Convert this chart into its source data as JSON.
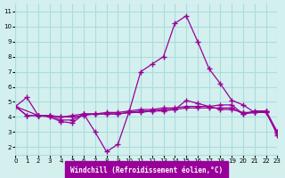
{
  "xlabel": "Windchill (Refroidissement éolien,°C)",
  "ylabel": "",
  "bg_color": "#d4f0ee",
  "grid_color": "#aadddd",
  "line_color": "#990099",
  "xlim": [
    0,
    23
  ],
  "ylim": [
    1.5,
    11.5
  ],
  "xticks": [
    0,
    1,
    2,
    3,
    4,
    5,
    6,
    7,
    8,
    9,
    10,
    11,
    12,
    13,
    14,
    15,
    16,
    17,
    18,
    19,
    20,
    21,
    22,
    23
  ],
  "yticks": [
    2,
    3,
    4,
    5,
    6,
    7,
    8,
    9,
    10,
    11
  ],
  "series": [
    {
      "x": [
        0,
        1,
        2,
        3,
        4,
        5,
        6,
        7,
        8,
        9,
        10,
        11,
        12,
        13,
        14,
        15,
        16,
        17,
        18,
        19,
        20,
        21,
        22,
        23
      ],
      "y": [
        4.7,
        5.3,
        4.1,
        4.0,
        3.7,
        3.6,
        4.2,
        3.0,
        1.7,
        2.2,
        4.4,
        7.0,
        7.5,
        8.0,
        10.2,
        10.7,
        9.0,
        7.2,
        6.2,
        5.1,
        4.8,
        4.3,
        4.4,
        2.8
      ]
    },
    {
      "x": [
        0,
        1,
        2,
        3,
        4,
        5,
        6,
        7,
        8,
        9,
        10,
        11,
        12,
        13,
        14,
        15,
        16,
        17,
        18,
        19,
        20,
        21,
        22,
        23
      ],
      "y": [
        4.7,
        4.1,
        4.1,
        4.1,
        4.0,
        4.1,
        4.2,
        4.2,
        4.3,
        4.3,
        4.4,
        4.5,
        4.5,
        4.6,
        4.6,
        4.7,
        4.7,
        4.7,
        4.8,
        4.8,
        4.2,
        4.4,
        4.4,
        3.0
      ]
    },
    {
      "x": [
        0,
        1,
        2,
        3,
        4,
        5,
        6,
        7,
        8,
        9,
        10,
        11,
        12,
        13,
        14,
        15,
        16,
        17,
        18,
        19,
        20,
        21,
        22,
        23
      ],
      "y": [
        4.7,
        4.1,
        4.1,
        4.1,
        3.8,
        3.8,
        4.2,
        4.2,
        4.2,
        4.2,
        4.3,
        4.3,
        4.4,
        4.4,
        4.5,
        5.1,
        4.9,
        4.7,
        4.5,
        4.5,
        4.3,
        4.3,
        4.3,
        2.9
      ]
    },
    {
      "x": [
        0,
        2,
        3,
        4,
        5,
        6,
        7,
        8,
        9,
        10,
        11,
        12,
        13,
        14,
        15,
        16,
        17,
        18,
        19,
        20,
        21,
        22,
        23
      ],
      "y": [
        4.7,
        4.1,
        4.1,
        4.0,
        4.0,
        4.1,
        4.2,
        4.2,
        4.2,
        4.3,
        4.4,
        4.4,
        4.5,
        4.5,
        4.6,
        4.6,
        4.6,
        4.6,
        4.6,
        4.2,
        4.3,
        4.4,
        3.0
      ]
    }
  ]
}
